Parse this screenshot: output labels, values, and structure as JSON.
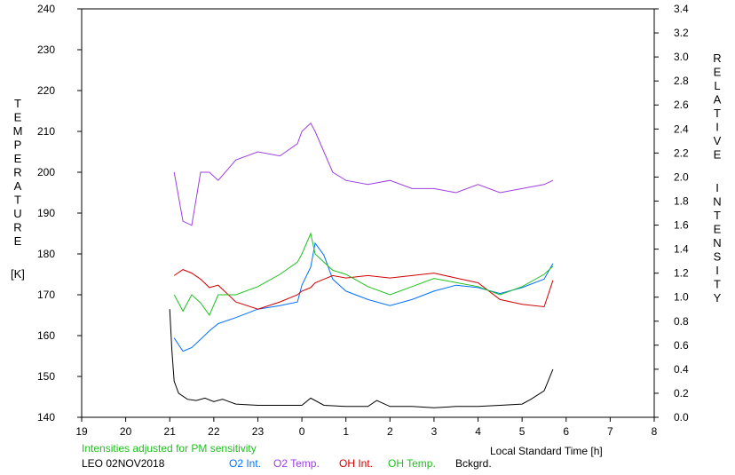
{
  "chart_data": {
    "type": "line",
    "x_axis": {
      "label": "Local Standard Time [h]",
      "range": [
        19,
        32
      ],
      "tick_labels": [
        "19",
        "20",
        "21",
        "22",
        "23",
        "0",
        "1",
        "2",
        "3",
        "4",
        "5",
        "6",
        "7",
        "8"
      ]
    },
    "y_left": {
      "label_letters": [
        "T",
        "E",
        "M",
        "P",
        "E",
        "R",
        "A",
        "T",
        "U",
        "R",
        "E"
      ],
      "unit": "[K]",
      "range": [
        140,
        240
      ],
      "tick_labels": [
        "140",
        "150",
        "160",
        "170",
        "180",
        "190",
        "200",
        "210",
        "220",
        "230",
        "240"
      ]
    },
    "y_right": {
      "label_letters_1": [
        "R",
        "E",
        "L",
        "A",
        "T",
        "I",
        "V",
        "E"
      ],
      "label_letters_2": [
        "I",
        "N",
        "T",
        "E",
        "N",
        "S",
        "I",
        "T",
        "Y"
      ],
      "range": [
        0.0,
        3.4
      ],
      "tick_labels": [
        "0.0",
        "0.2",
        "0.4",
        "0.6",
        "0.8",
        "1.0",
        "1.2",
        "1.4",
        "1.6",
        "1.8",
        "2.0",
        "2.2",
        "2.4",
        "2.6",
        "2.8",
        "3.0",
        "3.2",
        "3.4"
      ]
    },
    "note": "Intensities adjusted for PM sensitivity",
    "station_date": "LEO 02NOV2018",
    "series": [
      {
        "name": "O2 Int.",
        "axis": "right",
        "color": "#0070ff",
        "points": [
          [
            21.1,
            0.66
          ],
          [
            21.3,
            0.55
          ],
          [
            21.5,
            0.58
          ],
          [
            21.7,
            0.65
          ],
          [
            21.9,
            0.72
          ],
          [
            22.1,
            0.78
          ],
          [
            22.5,
            0.83
          ],
          [
            23.0,
            0.9
          ],
          [
            23.5,
            0.93
          ],
          [
            23.9,
            0.96
          ],
          [
            24.0,
            1.1
          ],
          [
            24.2,
            1.25
          ],
          [
            24.3,
            1.45
          ],
          [
            24.5,
            1.35
          ],
          [
            24.7,
            1.15
          ],
          [
            25.0,
            1.05
          ],
          [
            25.5,
            0.98
          ],
          [
            26.0,
            0.93
          ],
          [
            26.5,
            0.98
          ],
          [
            27.0,
            1.05
          ],
          [
            27.5,
            1.1
          ],
          [
            28.0,
            1.08
          ],
          [
            28.5,
            1.03
          ],
          [
            29.0,
            1.08
          ],
          [
            29.5,
            1.15
          ],
          [
            29.7,
            1.28
          ]
        ]
      },
      {
        "name": "O2 Temp.",
        "axis": "left",
        "color": "#9d3ee0",
        "points": [
          [
            21.1,
            200
          ],
          [
            21.3,
            188
          ],
          [
            21.5,
            187
          ],
          [
            21.7,
            200
          ],
          [
            21.9,
            200
          ],
          [
            22.1,
            198
          ],
          [
            22.5,
            203
          ],
          [
            23.0,
            205
          ],
          [
            23.5,
            204
          ],
          [
            23.9,
            207
          ],
          [
            24.0,
            210
          ],
          [
            24.2,
            212
          ],
          [
            24.3,
            210
          ],
          [
            24.5,
            205
          ],
          [
            24.7,
            200
          ],
          [
            25.0,
            198
          ],
          [
            25.5,
            197
          ],
          [
            26.0,
            198
          ],
          [
            26.5,
            196
          ],
          [
            27.0,
            196
          ],
          [
            27.5,
            195
          ],
          [
            28.0,
            197
          ],
          [
            28.5,
            195
          ],
          [
            29.0,
            196
          ],
          [
            29.5,
            197
          ],
          [
            29.7,
            198
          ]
        ]
      },
      {
        "name": "OH Int.",
        "axis": "right",
        "color": "#d00000",
        "points": [
          [
            21.1,
            1.18
          ],
          [
            21.3,
            1.23
          ],
          [
            21.5,
            1.2
          ],
          [
            21.7,
            1.15
          ],
          [
            21.9,
            1.08
          ],
          [
            22.1,
            1.1
          ],
          [
            22.5,
            0.96
          ],
          [
            23.0,
            0.9
          ],
          [
            23.5,
            0.96
          ],
          [
            23.9,
            1.02
          ],
          [
            24.0,
            1.05
          ],
          [
            24.2,
            1.08
          ],
          [
            24.3,
            1.12
          ],
          [
            24.5,
            1.15
          ],
          [
            24.7,
            1.18
          ],
          [
            25.0,
            1.16
          ],
          [
            25.5,
            1.18
          ],
          [
            26.0,
            1.16
          ],
          [
            26.5,
            1.18
          ],
          [
            27.0,
            1.2
          ],
          [
            27.5,
            1.16
          ],
          [
            28.0,
            1.12
          ],
          [
            28.5,
            0.98
          ],
          [
            29.0,
            0.94
          ],
          [
            29.5,
            0.92
          ],
          [
            29.7,
            1.14
          ]
        ]
      },
      {
        "name": "OH Temp.",
        "axis": "left",
        "color": "#1fc01f",
        "points": [
          [
            21.1,
            170
          ],
          [
            21.3,
            166
          ],
          [
            21.5,
            170
          ],
          [
            21.7,
            168
          ],
          [
            21.9,
            165
          ],
          [
            22.1,
            170
          ],
          [
            22.5,
            170
          ],
          [
            23.0,
            172
          ],
          [
            23.5,
            175
          ],
          [
            23.9,
            178
          ],
          [
            24.0,
            180
          ],
          [
            24.2,
            185
          ],
          [
            24.3,
            180
          ],
          [
            24.5,
            178
          ],
          [
            24.7,
            176
          ],
          [
            25.0,
            175
          ],
          [
            25.5,
            172
          ],
          [
            26.0,
            170
          ],
          [
            26.5,
            172
          ],
          [
            27.0,
            174
          ],
          [
            27.5,
            173
          ],
          [
            28.0,
            172
          ],
          [
            28.5,
            170
          ],
          [
            29.0,
            172
          ],
          [
            29.5,
            175
          ],
          [
            29.7,
            177
          ]
        ]
      },
      {
        "name": "Bckgrd.",
        "axis": "right",
        "color": "#000000",
        "points": [
          [
            21.0,
            0.9
          ],
          [
            21.05,
            0.55
          ],
          [
            21.1,
            0.3
          ],
          [
            21.2,
            0.2
          ],
          [
            21.4,
            0.15
          ],
          [
            21.6,
            0.14
          ],
          [
            21.8,
            0.16
          ],
          [
            22.0,
            0.13
          ],
          [
            22.2,
            0.15
          ],
          [
            22.5,
            0.11
          ],
          [
            23.0,
            0.1
          ],
          [
            23.5,
            0.1
          ],
          [
            24.0,
            0.1
          ],
          [
            24.2,
            0.16
          ],
          [
            24.5,
            0.1
          ],
          [
            25.0,
            0.09
          ],
          [
            25.5,
            0.09
          ],
          [
            25.7,
            0.14
          ],
          [
            26.0,
            0.09
          ],
          [
            26.5,
            0.09
          ],
          [
            27.0,
            0.08
          ],
          [
            27.5,
            0.09
          ],
          [
            28.0,
            0.09
          ],
          [
            28.5,
            0.1
          ],
          [
            29.0,
            0.11
          ],
          [
            29.2,
            0.15
          ],
          [
            29.5,
            0.22
          ],
          [
            29.7,
            0.4
          ]
        ]
      }
    ]
  }
}
